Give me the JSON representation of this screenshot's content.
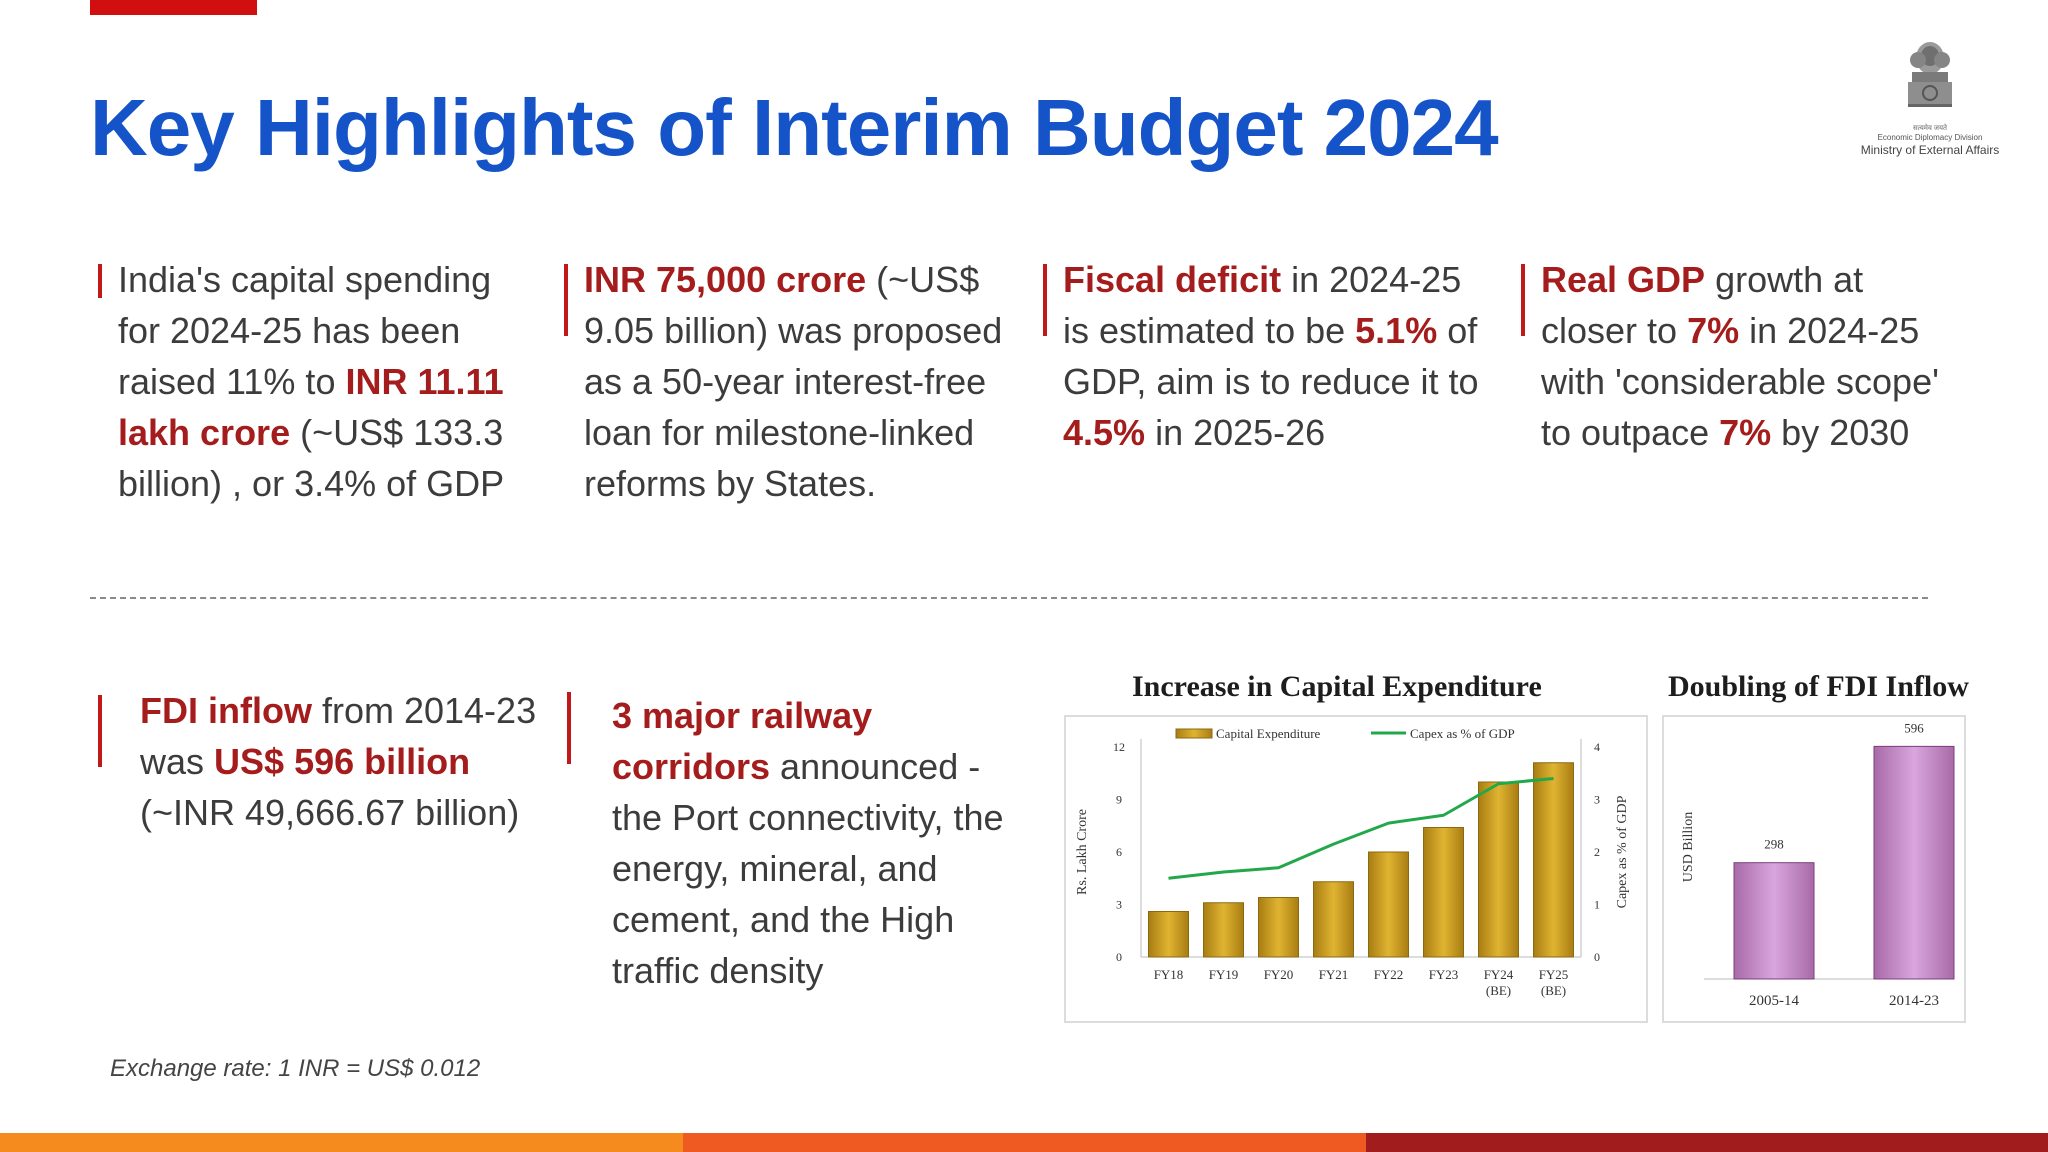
{
  "title": "Key Highlights of Interim Budget 2024",
  "emblem": {
    "hindi_caption": "सत्यमेव जयते",
    "division": "Economic Diplomacy Division",
    "ministry": "Ministry of External Affairs"
  },
  "highlights": [
    {
      "t1": "India's capital spending for 2024-25 has been raised 11% to ",
      "b1": "INR 11.11 lakh crore",
      "t2": " (~US$ 133.3 billion) , or 3.4% of GDP"
    },
    {
      "b1": "INR 75,000 crore",
      "t1": " (~US$ 9.05 billion) was proposed as a 50-year interest-free loan for milestone-linked reforms by States."
    },
    {
      "b1": "Fiscal deficit",
      "t1": " in 2024-25 is estimated to be ",
      "b2": "5.1%",
      "t2": " of GDP,  aim is to reduce it to ",
      "b3": "4.5%",
      "t3": " in 2025-26"
    },
    {
      "b1": "Real GDP",
      "t1": " growth at closer to ",
      "b2": "7%",
      "t2": " in 2024-25 with 'considerable scope' to outpace ",
      "b3": "7%",
      "t3": " by 2030"
    },
    {
      "b1": "FDI inflow",
      "t1": " from 2014-23 was ",
      "b2": "US$ 596 billion",
      "t2": " (~INR 49,666.67 billion)"
    },
    {
      "b1": "3 major railway corridors",
      "t1": " announced - the Port connectivity, the energy, mineral, and cement, and the High traffic density"
    }
  ],
  "footnote": "Exchange rate: 1 INR = US$ 0.012",
  "colors": {
    "title": "#1553c9",
    "emphasis": "#a51c1c",
    "bar_gold": "#e0b431",
    "line_green": "#22a84a",
    "bar_purple": "#d9a6df"
  },
  "chart_data": [
    {
      "type": "bar",
      "title": "Increase in Capital Expenditure",
      "categories": [
        "FY18",
        "FY19",
        "FY20",
        "FY21",
        "FY22",
        "FY23",
        "FY24 (BE)",
        "FY25 (BE)"
      ],
      "ylabel": "Rs. Lakh Crore",
      "y2label": "Capex as % of GDP",
      "ylim": [
        0,
        12
      ],
      "y2lim": [
        0,
        4
      ],
      "yticks": [
        "0",
        "3",
        "6",
        "9",
        "12"
      ],
      "y2ticks": [
        "0",
        "1",
        "2",
        "3",
        "4"
      ],
      "legend_position": "top",
      "series": [
        {
          "name": "Capital Expenditure",
          "type": "bar",
          "axis": "left",
          "values": [
            2.6,
            3.1,
            3.4,
            4.3,
            6.0,
            7.4,
            10.0,
            11.1
          ]
        },
        {
          "name": "Capex as % of GDP",
          "type": "line",
          "axis": "right",
          "values": [
            1.5,
            1.62,
            1.7,
            2.15,
            2.55,
            2.7,
            3.3,
            3.4
          ]
        }
      ]
    },
    {
      "type": "bar",
      "title": "Doubling of FDI Inflow",
      "categories": [
        "2005-14",
        "2014-23"
      ],
      "ylabel": "USD Billion",
      "ylim": [
        0,
        620
      ],
      "series": [
        {
          "values": [
            298,
            596
          ]
        }
      ],
      "data_labels": [
        "298",
        "596"
      ]
    }
  ]
}
